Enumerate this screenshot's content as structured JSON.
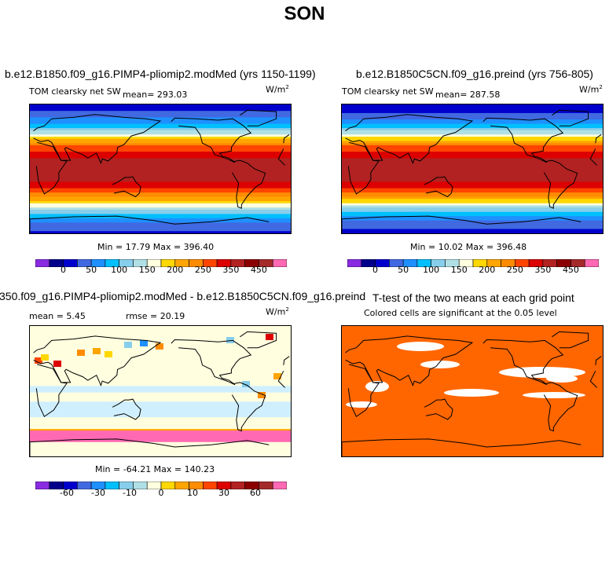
{
  "page_title": "SON",
  "panels": {
    "top_left": {
      "title": "b.e12.B1850.f09_g16.PIMP4-pliomip2.modMed (yrs 1150-1199)",
      "variable": "TOM clearsky net SW",
      "mean_text": "mean= 293.03",
      "units": "W/m",
      "units_sup": "2",
      "minmax": "Min =  17.79 Max = 396.40"
    },
    "top_right": {
      "title": "b.e12.B1850C5CN.f09_g16.preind (yrs 756-805)",
      "variable": "TOM clearsky net SW",
      "mean_text": "mean= 287.58",
      "units": "W/m",
      "units_sup": "2",
      "minmax": "Min =  10.02 Max = 396.48"
    },
    "bottom_left": {
      "title": "350.f09_g16.PIMP4-pliomip2.modMed - b.e12.B1850C5CN.f09_g16.preind",
      "mean_text": "mean =    5.45",
      "rmse_text": "rmse =  20.19",
      "units": "W/m",
      "units_sup": "2",
      "minmax": "Min = -64.21 Max = 140.23"
    },
    "bottom_right": {
      "title": "T-test of the two means at each grid point",
      "subtitle": "Colored cells are significant at the 0.05 level"
    }
  },
  "colorbars": {
    "absolute": {
      "colors": [
        "#8a2be2",
        "#00008b",
        "#0000cd",
        "#4169e1",
        "#1e90ff",
        "#00bfff",
        "#87ceeb",
        "#b0e0e6",
        "#ffffe0",
        "#ffd700",
        "#ffa500",
        "#ff8c00",
        "#ff4500",
        "#dc0000",
        "#b22222",
        "#8b0000",
        "#a52a2a",
        "#ff69b4"
      ],
      "tick_labels": [
        "0",
        "50",
        "100",
        "150",
        "200",
        "250",
        "350",
        "450"
      ]
    },
    "difference": {
      "colors": [
        "#8a2be2",
        "#00008b",
        "#0000cd",
        "#4169e1",
        "#1e90ff",
        "#00bfff",
        "#87ceeb",
        "#b0e0e6",
        "#ffffe0",
        "#ffd700",
        "#ffa500",
        "#ff8c00",
        "#ff4500",
        "#dc0000",
        "#b22222",
        "#8b0000",
        "#a52a2a",
        "#ff69b4"
      ],
      "tick_labels": [
        "-60",
        "-30",
        "-10",
        "0",
        "10",
        "30",
        "60"
      ]
    }
  },
  "chart_data": [
    {
      "type": "heatmap",
      "title": "b.e12.B1850.f09_g16.PIMP4-pliomip2.modMed (yrs 1150-1199)",
      "variable": "TOM clearsky net SW",
      "units": "W/m2",
      "mean": 293.03,
      "min": 17.79,
      "max": 396.4,
      "colorbar_levels": [
        0,
        50,
        100,
        150,
        200,
        250,
        350,
        450
      ],
      "zonal_pattern_lat": [
        90,
        75,
        60,
        45,
        30,
        15,
        0,
        -15,
        -30,
        -45,
        -60,
        -75,
        -90
      ],
      "zonal_pattern_value": [
        60,
        90,
        150,
        240,
        330,
        375,
        385,
        380,
        340,
        260,
        170,
        110,
        70
      ]
    },
    {
      "type": "heatmap",
      "title": "b.e12.B1850C5CN.f09_g16.preind (yrs 756-805)",
      "variable": "TOM clearsky net SW",
      "units": "W/m2",
      "mean": 287.58,
      "min": 10.02,
      "max": 396.48,
      "colorbar_levels": [
        0,
        50,
        100,
        150,
        200,
        250,
        350,
        450
      ],
      "zonal_pattern_lat": [
        90,
        75,
        60,
        45,
        30,
        15,
        0,
        -15,
        -30,
        -45,
        -60,
        -75,
        -90
      ],
      "zonal_pattern_value": [
        55,
        85,
        145,
        235,
        330,
        375,
        385,
        380,
        340,
        255,
        150,
        100,
        65
      ]
    },
    {
      "type": "heatmap",
      "title": "350.f09_g16.PIMP4-pliomip2.modMed - b.e12.B1850C5CN.f09_g16.preind",
      "units": "W/m2",
      "mean": 5.45,
      "rmse": 20.19,
      "min": -64.21,
      "max": 140.23,
      "colorbar_levels": [
        -60,
        -30,
        -10,
        0,
        10,
        30,
        60
      ]
    },
    {
      "type": "heatmap",
      "title": "T-test of the two means at each grid point",
      "subtitle": "Colored cells are significant at the 0.05 level",
      "significant_color": "#ff6600",
      "insignificant_color": "#ffffff"
    }
  ]
}
